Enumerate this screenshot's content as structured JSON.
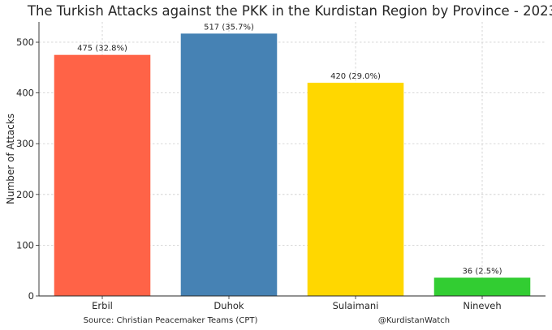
{
  "chart_data": {
    "type": "bar",
    "title": "The Turkish Attacks against the PKK in the Kurdistan Region by Province - 2023",
    "xlabel": "",
    "ylabel": "Number of Attacks",
    "ylim": [
      0,
      540
    ],
    "yticks": [
      "0",
      "100",
      "200",
      "300",
      "400",
      "500"
    ],
    "grid": true,
    "categories": [
      "Erbil",
      "Duhok",
      "Sulaimani",
      "Nineveh"
    ],
    "values": [
      475,
      517,
      420,
      36
    ],
    "data_labels": [
      "475 (32.8%)",
      "517 (35.7%)",
      "420 (29.0%)",
      "36 (2.5%)"
    ],
    "colors": [
      "#ff6347",
      "#4682b4",
      "#ffd700",
      "#32cd32"
    ]
  },
  "footer": {
    "source": "Source: Christian Peacemaker Teams (CPT)",
    "handle": "@KurdistanWatch"
  }
}
